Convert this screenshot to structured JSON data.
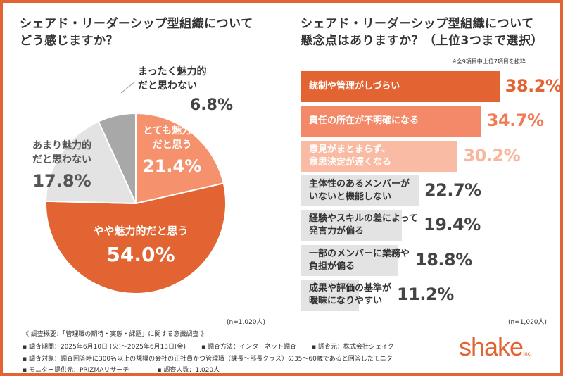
{
  "chart_data": [
    {
      "type": "pie",
      "title": "シェアド・リーダーシップ型組織について どう感じますか？",
      "title_lines": [
        "シェアド・リーダーシップ型組織について",
        "どう感じますか？"
      ],
      "slices": [
        {
          "label_lines": [
            "とても魅力的",
            "だと思う"
          ],
          "value": 21.4,
          "value_label": "21.4%",
          "color": "#f6916e"
        },
        {
          "label_lines": [
            "やや魅力的だと思う"
          ],
          "value": 54.0,
          "value_label": "54.0%",
          "color": "#e36433"
        },
        {
          "label_lines": [
            "あまり魅力的",
            "だと思わない"
          ],
          "value": 17.8,
          "value_label": "17.8%",
          "color": "#e3e3e3"
        },
        {
          "label_lines": [
            "まったく魅力的",
            "だと思わない"
          ],
          "value": 6.8,
          "value_label": "6.8%",
          "color": "#a8a8a8"
        }
      ],
      "n": "(n=1,020人)"
    },
    {
      "type": "bar",
      "orientation": "horizontal",
      "title_lines": [
        "シェアド・リーダーシップ型組織について",
        "懸念点はありますか？（上位3つまで選択）"
      ],
      "note": "※全9項目中上位7項目を抜粋",
      "categories": [
        [
          "統制や管理がしづらい"
        ],
        [
          "責任の所在が不明確になる"
        ],
        [
          "意見がまとまらず、",
          "意思決定が遅くなる"
        ],
        [
          "主体性のあるメンバーが",
          "いないと機能しない"
        ],
        [
          "経験やスキルの差によって",
          "発言力が偏る"
        ],
        [
          "一部のメンバーに業務や",
          "負担が偏る"
        ],
        [
          "成果や評価の基準が",
          "曖昧になりやすい"
        ]
      ],
      "values": [
        38.2,
        34.7,
        30.2,
        22.7,
        19.4,
        18.8,
        11.2
      ],
      "value_labels": [
        "38.2%",
        "34.7%",
        "30.2%",
        "22.7%",
        "19.4%",
        "18.8%",
        "11.2%"
      ],
      "bar_colors": [
        "#e36433",
        "#f4896a",
        "#f9bba4",
        "#e3e3e3",
        "#e3e3e3",
        "#e3e3e3",
        "#e3e3e3"
      ],
      "value_colors": [
        "#e36433",
        "#f07c55",
        "#f9b69c",
        "#444444",
        "#444444",
        "#444444",
        "#444444"
      ],
      "label_colors": [
        "#ffffff",
        "#ffffff",
        "#ffffff",
        "#333333",
        "#333333",
        "#333333",
        "#333333"
      ],
      "n": "(n=1,020人)"
    }
  ],
  "footer": {
    "overview": "《 調査概要：「管理職の期待・実態・課題」に関する意識調査 》",
    "period": "▪ 調査期間：2025年6月10日 (火)～2025年6月13日(金)",
    "method": "▪ 調査方法：インターネット調査",
    "source": "▪ 調査元：株式会社シェイク",
    "target": "▪ 調査対象：調査回答時に300名以上の規模の会社の正社員かつ管理職（課長～部長クラス）の35～60歳であると回答したモニター",
    "provider": "▪ モニター提供元：PRIZMAリサーチ",
    "count": "▪ 調査人数：1,020人"
  },
  "logo": {
    "text": "shake",
    "suffix": "Inc."
  }
}
